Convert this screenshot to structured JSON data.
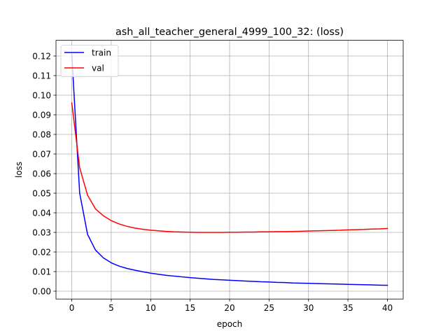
{
  "chart_data": {
    "type": "line",
    "title": "ash_all_teacher_general_4999_100_32: (loss)",
    "xlabel": "epoch",
    "ylabel": "loss",
    "xlim": [
      -2,
      42
    ],
    "ylim": [
      -0.004,
      0.128
    ],
    "x_ticks": [
      0,
      5,
      10,
      15,
      20,
      25,
      30,
      35,
      40
    ],
    "x_tick_labels": [
      "0",
      "5",
      "10",
      "15",
      "20",
      "25",
      "30",
      "35",
      "40"
    ],
    "y_ticks": [
      0.0,
      0.01,
      0.02,
      0.03,
      0.04,
      0.05,
      0.06,
      0.07,
      0.08,
      0.09,
      0.1,
      0.11,
      0.12
    ],
    "y_tick_labels": [
      "0.00",
      "0.01",
      "0.02",
      "0.03",
      "0.04",
      "0.05",
      "0.06",
      "0.07",
      "0.08",
      "0.09",
      "0.10",
      "0.11",
      "0.12"
    ],
    "grid": true,
    "legend_position": "top-left",
    "x": [
      0,
      1,
      2,
      3,
      4,
      5,
      6,
      7,
      8,
      9,
      10,
      11,
      12,
      13,
      14,
      15,
      16,
      17,
      18,
      19,
      20,
      21,
      22,
      23,
      24,
      25,
      26,
      27,
      28,
      29,
      30,
      31,
      32,
      33,
      34,
      35,
      36,
      37,
      38,
      39,
      40
    ],
    "series": [
      {
        "name": "train",
        "color": "#0000ff",
        "values": [
          0.121,
          0.05,
          0.029,
          0.021,
          0.017,
          0.0145,
          0.0128,
          0.0116,
          0.0107,
          0.0099,
          0.0092,
          0.0086,
          0.0081,
          0.0077,
          0.0073,
          0.0069,
          0.0066,
          0.0063,
          0.006,
          0.0058,
          0.0056,
          0.0054,
          0.0052,
          0.005,
          0.0048,
          0.0047,
          0.0045,
          0.0044,
          0.0042,
          0.0041,
          0.004,
          0.0039,
          0.0038,
          0.0037,
          0.0036,
          0.0035,
          0.0034,
          0.0033,
          0.0032,
          0.0031,
          0.003
        ]
      },
      {
        "name": "val",
        "color": "#ff0000",
        "values": [
          0.096,
          0.063,
          0.049,
          0.042,
          0.0385,
          0.036,
          0.0343,
          0.0331,
          0.0322,
          0.0316,
          0.0311,
          0.0308,
          0.0305,
          0.0303,
          0.0302,
          0.0301,
          0.03,
          0.03,
          0.03,
          0.03,
          0.0301,
          0.0301,
          0.0302,
          0.0302,
          0.0303,
          0.0303,
          0.0304,
          0.0304,
          0.0305,
          0.0306,
          0.0307,
          0.0308,
          0.0309,
          0.031,
          0.0311,
          0.0313,
          0.0314,
          0.0315,
          0.0317,
          0.0318,
          0.032
        ]
      }
    ]
  }
}
